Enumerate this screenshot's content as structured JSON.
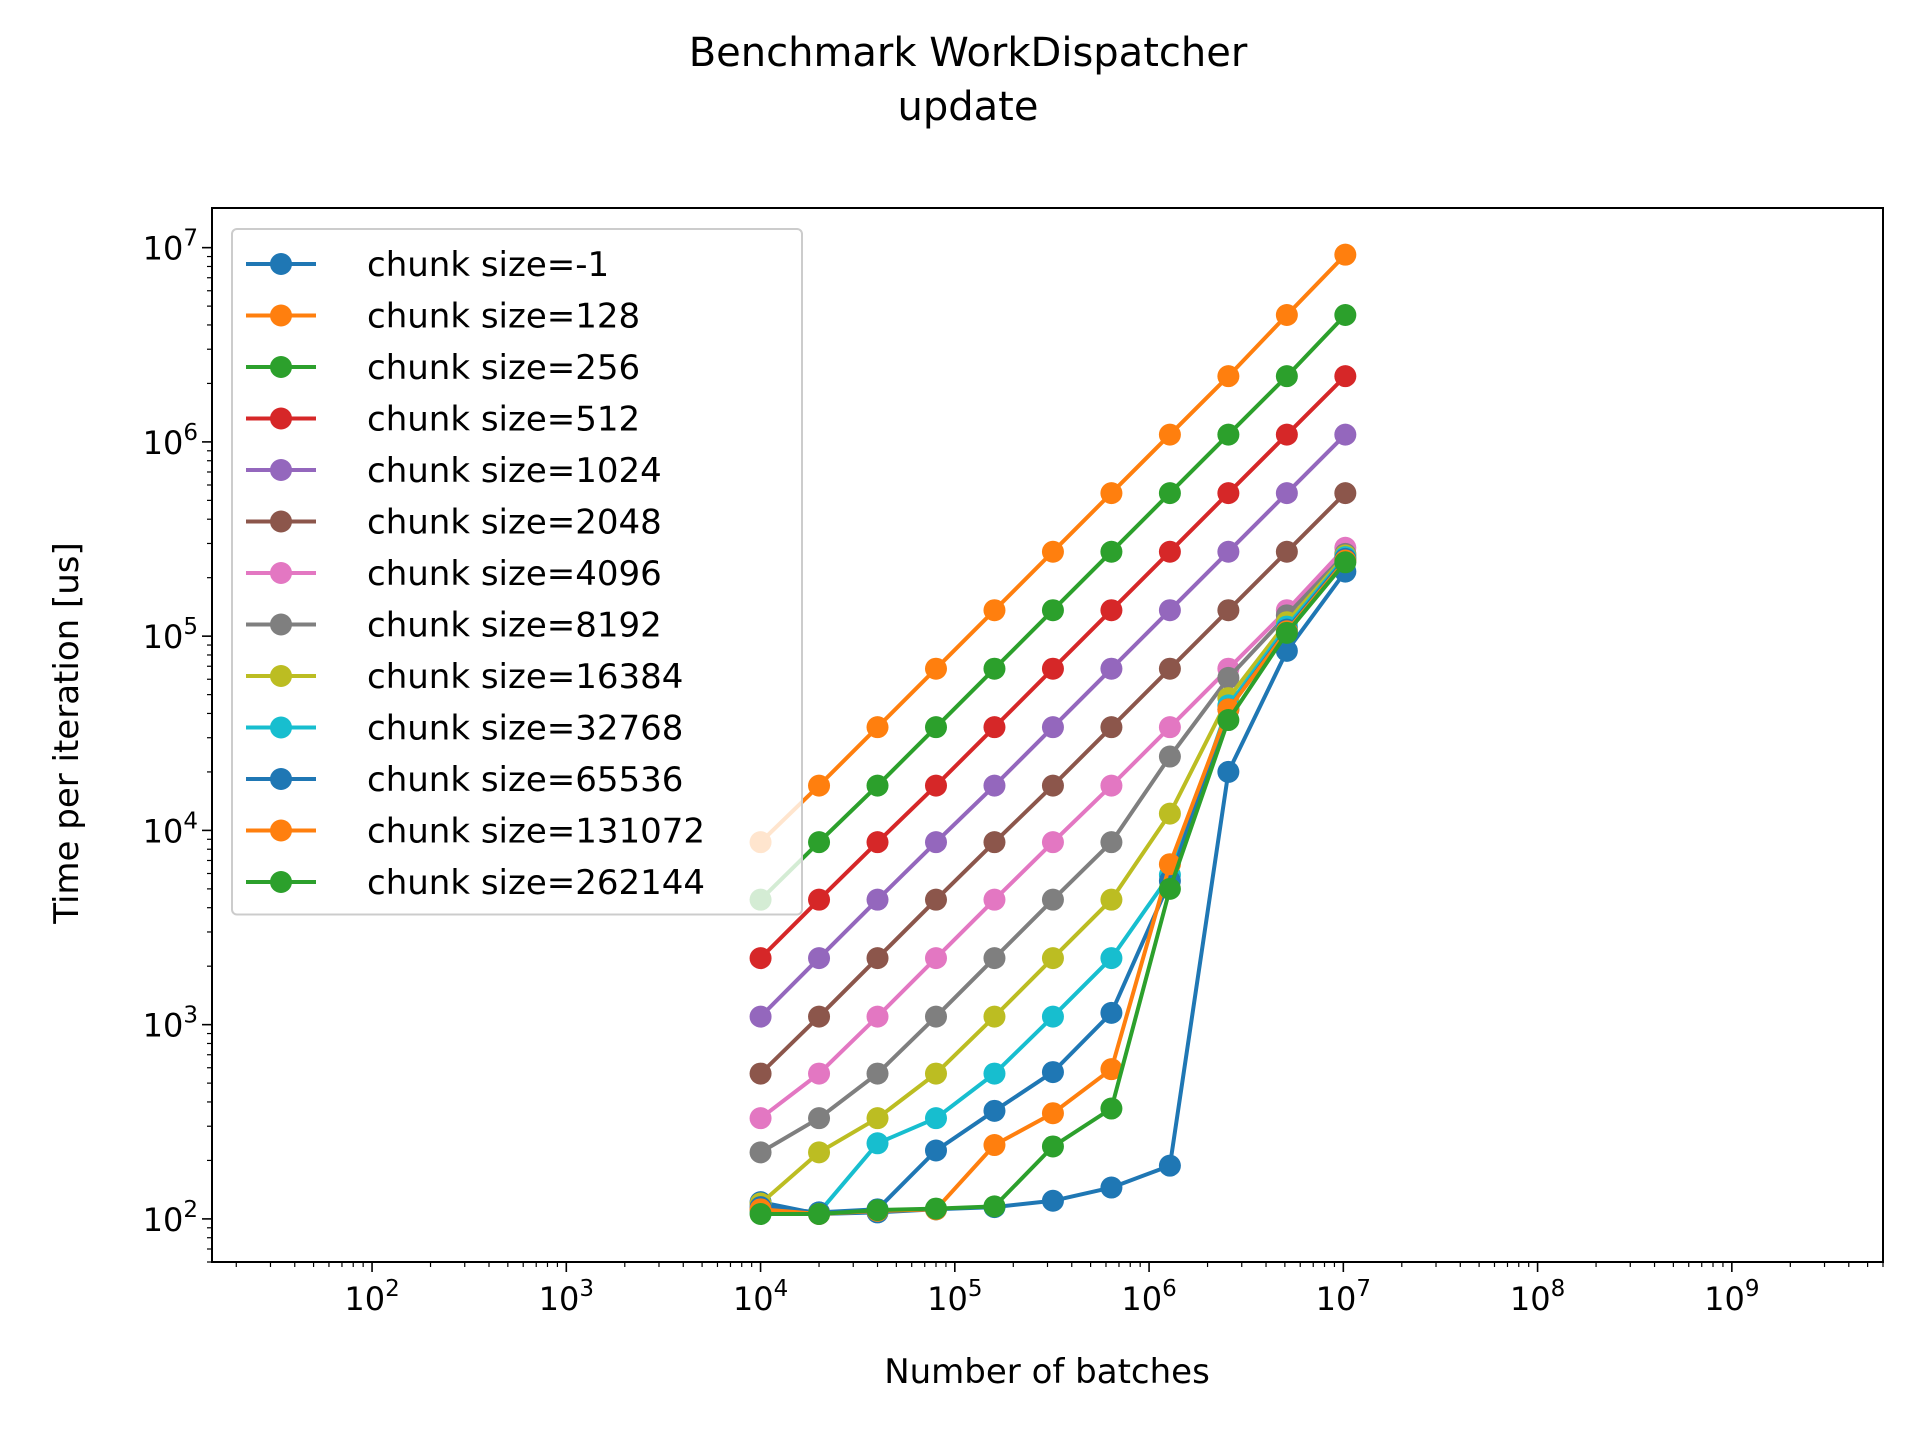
{
  "chart_data": {
    "type": "line",
    "title": "Benchmark WorkDispatcher",
    "subtitle": "update",
    "xlabel": "Number of batches",
    "ylabel": "Time per iteration [us]",
    "xscale": "log",
    "yscale": "log",
    "xlim": [
      15,
      6000000000
    ],
    "ylim": [
      60,
      16000000
    ],
    "grid": false,
    "legend_position": "upper-left",
    "x_ticks": [
      {
        "value": 100,
        "base": "10",
        "exp": "2"
      },
      {
        "value": 1000,
        "base": "10",
        "exp": "3"
      },
      {
        "value": 10000,
        "base": "10",
        "exp": "4"
      },
      {
        "value": 100000,
        "base": "10",
        "exp": "5"
      },
      {
        "value": 1000000,
        "base": "10",
        "exp": "6"
      },
      {
        "value": 10000000,
        "base": "10",
        "exp": "7"
      },
      {
        "value": 100000000,
        "base": "10",
        "exp": "8"
      },
      {
        "value": 1000000000,
        "base": "10",
        "exp": "9"
      }
    ],
    "y_ticks": [
      {
        "value": 100,
        "base": "10",
        "exp": "2"
      },
      {
        "value": 1000,
        "base": "10",
        "exp": "3"
      },
      {
        "value": 10000,
        "base": "10",
        "exp": "4"
      },
      {
        "value": 100000,
        "base": "10",
        "exp": "5"
      },
      {
        "value": 1000000,
        "base": "10",
        "exp": "6"
      },
      {
        "value": 10000000,
        "base": "10",
        "exp": "7"
      }
    ],
    "x": [
      10000,
      20000,
      40000,
      80000,
      160000,
      320000,
      640000,
      1280000,
      2560000,
      5120000,
      10240000
    ],
    "series": [
      {
        "name": "chunk size=-1",
        "color": "#1f77b4",
        "values": [
          122,
          106,
          108,
          112,
          115,
          124,
          145,
          188,
          20000,
          84000,
          215000
        ]
      },
      {
        "name": "chunk size=128",
        "color": "#ff7f0e",
        "values": [
          8700,
          17000,
          34000,
          68000,
          136000,
          272000,
          545000,
          1090000,
          2180000,
          4500000,
          9200000
        ]
      },
      {
        "name": "chunk size=256",
        "color": "#2ca02c",
        "values": [
          4400,
          8700,
          17000,
          34000,
          68000,
          136000,
          272000,
          545000,
          1090000,
          2180000,
          4500000
        ]
      },
      {
        "name": "chunk size=512",
        "color": "#d62728",
        "values": [
          2200,
          4400,
          8700,
          17000,
          34000,
          68000,
          136000,
          272000,
          545000,
          1090000,
          2180000
        ]
      },
      {
        "name": "chunk size=1024",
        "color": "#9467bd",
        "values": [
          1100,
          2200,
          4400,
          8700,
          17000,
          34000,
          68000,
          136000,
          272000,
          545000,
          1090000
        ]
      },
      {
        "name": "chunk size=2048",
        "color": "#8c564b",
        "values": [
          560,
          1100,
          2200,
          4400,
          8700,
          17000,
          34000,
          68000,
          136000,
          272000,
          545000
        ]
      },
      {
        "name": "chunk size=4096",
        "color": "#e377c2",
        "values": [
          330,
          560,
          1100,
          2200,
          4400,
          8700,
          17000,
          34000,
          68000,
          136000,
          285000
        ]
      },
      {
        "name": "chunk size=8192",
        "color": "#7f7f7f",
        "values": [
          220,
          330,
          560,
          1100,
          2200,
          4400,
          8700,
          24000,
          61000,
          128000,
          265000
        ]
      },
      {
        "name": "chunk size=16384",
        "color": "#bcbd22",
        "values": [
          120,
          220,
          330,
          560,
          1100,
          2200,
          4400,
          12200,
          48000,
          118000,
          260000
        ]
      },
      {
        "name": "chunk size=32768",
        "color": "#17becf",
        "values": [
          110,
          108,
          245,
          330,
          560,
          1100,
          2200,
          5900,
          44000,
          112000,
          255000
        ]
      },
      {
        "name": "chunk size=65536",
        "color": "#1f77b4",
        "values": [
          115,
          108,
          112,
          225,
          360,
          570,
          1150,
          5500,
          42000,
          108000,
          250000
        ]
      },
      {
        "name": "chunk size=131072",
        "color": "#ff7f0e",
        "values": [
          112,
          106,
          110,
          112,
          240,
          350,
          590,
          6700,
          42000,
          106000,
          245000
        ]
      },
      {
        "name": "chunk size=262144",
        "color": "#2ca02c",
        "values": [
          106,
          106,
          111,
          113,
          116,
          236,
          370,
          5000,
          37000,
          104000,
          240000
        ]
      }
    ]
  }
}
